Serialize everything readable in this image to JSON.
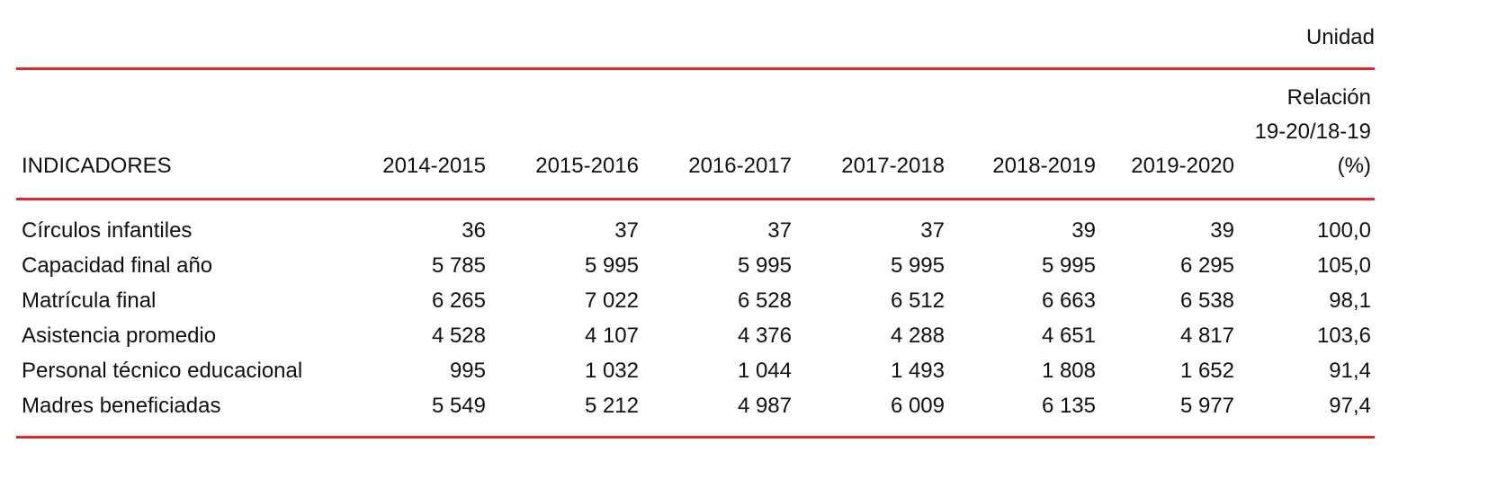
{
  "unit": "Unidad",
  "table": {
    "headers": {
      "indicator": "INDICADORES",
      "years": [
        "2014-2015",
        "2015-2016",
        "2016-2017",
        "2017-2018",
        "2018-2019",
        "2019-2020"
      ],
      "relation": [
        "Relación",
        "19-20/18-19",
        "(%)"
      ]
    },
    "rows": [
      {
        "label": "Círculos infantiles",
        "values": [
          "36",
          "37",
          "37",
          "37",
          "39",
          "39"
        ],
        "relation": "100,0"
      },
      {
        "label": "Capacidad final año",
        "values": [
          "5 785",
          "5 995",
          "5 995",
          "5 995",
          "5 995",
          "6 295"
        ],
        "relation": "105,0"
      },
      {
        "label": "Matrícula final",
        "values": [
          "6 265",
          "7 022",
          "6 528",
          "6 512",
          "6 663",
          "6 538"
        ],
        "relation": "98,1"
      },
      {
        "label": "Asistencia promedio",
        "values": [
          "4 528",
          "4 107",
          "4 376",
          "4 288",
          "4 651",
          "4 817"
        ],
        "relation": "103,6"
      },
      {
        "label": "Personal técnico educacional",
        "values": [
          "995",
          "1 032",
          "1 044",
          "1 493",
          "1 808",
          "1 652"
        ],
        "relation": "91,4"
      },
      {
        "label": "Madres beneficiadas",
        "values": [
          "5 549",
          "5 212",
          "4 987",
          "6 009",
          "6 135",
          "5 977"
        ],
        "relation": "97,4"
      }
    ]
  },
  "colors": {
    "rule": "#e3262b",
    "text": "#111111"
  }
}
